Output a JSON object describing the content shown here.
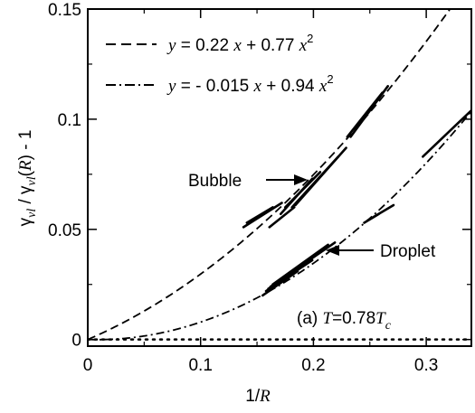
{
  "chart_data": {
    "type": "line",
    "title": "",
    "xlabel": "1/R",
    "ylabel": "γvl / γvl(R) - 1",
    "xlim": [
      0,
      0.34
    ],
    "ylim": [
      -0.003,
      0.15
    ],
    "x_ticks": [
      0,
      0.1,
      0.2,
      0.3
    ],
    "x_tick_labels": [
      "0",
      "0.1",
      "0.2",
      "0.3"
    ],
    "y_ticks": [
      0,
      0.05,
      0.1,
      0.15
    ],
    "y_tick_labels": [
      "0",
      "0.05",
      "0.1",
      "0.15"
    ],
    "grid": false,
    "legend_position": "top-left",
    "fits": [
      {
        "name": "y = 0.22 x + 0.77 x^2",
        "a": 0.22,
        "b": 0.77,
        "style": "dashed"
      },
      {
        "name": "y = - 0.015 x + 0.94 x^2",
        "a": -0.015,
        "b": 0.94,
        "style": "dashdot"
      }
    ],
    "bubble_segments": [
      [
        [
          0.138,
          0.051
        ],
        [
          0.172,
          0.062
        ]
      ],
      [
        [
          0.141,
          0.053
        ],
        [
          0.164,
          0.06
        ]
      ],
      [
        [
          0.161,
          0.051
        ],
        [
          0.183,
          0.06
        ]
      ],
      [
        [
          0.171,
          0.057
        ],
        [
          0.199,
          0.073
        ]
      ],
      [
        [
          0.175,
          0.06
        ],
        [
          0.206,
          0.076
        ]
      ],
      [
        [
          0.181,
          0.06
        ],
        [
          0.222,
          0.083
        ]
      ],
      [
        [
          0.184,
          0.061
        ],
        [
          0.229,
          0.087
        ]
      ],
      [
        [
          0.23,
          0.092
        ],
        [
          0.261,
          0.112
        ]
      ],
      [
        [
          0.233,
          0.092
        ],
        [
          0.266,
          0.115
        ]
      ]
    ],
    "droplet_segments": [
      [
        [
          0.155,
          0.02
        ],
        [
          0.186,
          0.031
        ]
      ],
      [
        [
          0.158,
          0.022
        ],
        [
          0.199,
          0.036
        ]
      ],
      [
        [
          0.16,
          0.023
        ],
        [
          0.21,
          0.041
        ]
      ],
      [
        [
          0.162,
          0.024
        ],
        [
          0.219,
          0.044
        ]
      ],
      [
        [
          0.164,
          0.025
        ],
        [
          0.213,
          0.043
        ]
      ],
      [
        [
          0.248,
          0.054
        ],
        [
          0.271,
          0.061
        ]
      ],
      [
        [
          0.245,
          0.053
        ],
        [
          0.258,
          0.057
        ]
      ],
      [
        [
          0.297,
          0.083
        ],
        [
          0.34,
          0.104
        ]
      ]
    ],
    "annotations": {
      "bubble": "Bubble",
      "droplet": "Droplet",
      "panel": "(a) T=0.78Tc"
    }
  },
  "legend": {
    "l1_prefix": "y",
    "l1_mid": " = 0.22 ",
    "l1_x": "x",
    "l1_mid2": " + 0.77 ",
    "l1_x2": "x",
    "l1_exp": "2",
    "l2_prefix": "y",
    "l2_mid": " = - 0.015 ",
    "l2_x": "x",
    "l2_mid2": " + 0.94 ",
    "l2_x2": "x",
    "l2_exp": "2"
  },
  "labels": {
    "bubble": "Bubble",
    "droplet": "Droplet",
    "panel_a": "(a) ",
    "panel_T": "T",
    "panel_eq": "=0.78",
    "panel_T2": "T",
    "panel_sub": "c",
    "xlabel_1": "1/",
    "xlabel_R": "R",
    "ylabel_gamma": "γ",
    "ylabel_sub": "vl",
    "ylabel_slash": " / ",
    "ylabel_gamma2": "γ",
    "ylabel_sub2": "vl",
    "ylabel_paren": "(",
    "ylabel_R": "R",
    "ylabel_end": ") - 1"
  }
}
